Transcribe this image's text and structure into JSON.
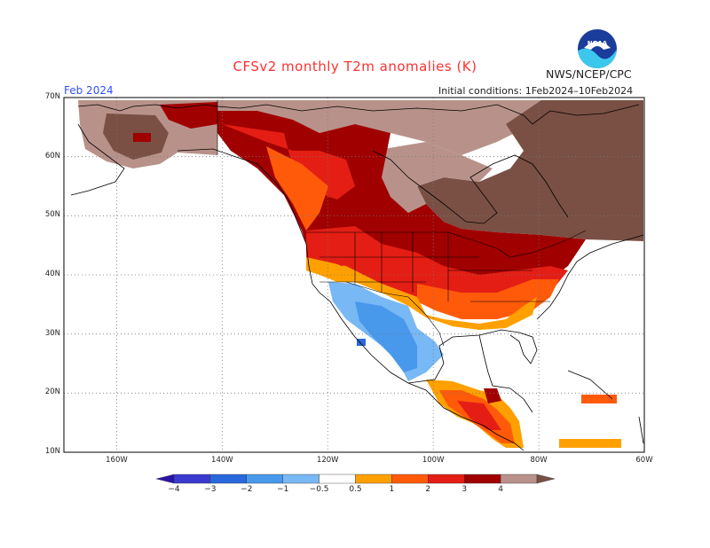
{
  "header": {
    "title": "CFSv2 monthly T2m anomalies (K)",
    "agency": "NWS/NCEP/CPC",
    "logo_text": "NOAA",
    "month": "Feb 2024",
    "initial_conditions": "Initial conditions: 1Feb2024–10Feb2024"
  },
  "map": {
    "lat_labels": [
      "70N",
      "60N",
      "50N",
      "40N",
      "30N",
      "20N",
      "10N"
    ],
    "lon_labels": [
      "160W",
      "140W",
      "120W",
      "100W",
      "80W",
      "60W"
    ],
    "lat_values": [
      70,
      60,
      50,
      40,
      30,
      20,
      10
    ],
    "lon_values": [
      -160,
      -140,
      -120,
      -100,
      -80,
      -60
    ],
    "lat_range": [
      10,
      70
    ],
    "lon_range": [
      -170,
      -60
    ],
    "grid": "dotted",
    "land_color": "#ffffff",
    "border_color": "#000000"
  },
  "colorbar": {
    "labels": [
      "−4",
      "−3",
      "−2",
      "−1",
      "−0.5",
      "0.5",
      "1",
      "2",
      "3",
      "4"
    ],
    "bins": [
      {
        "color": "#2a13a8"
      },
      {
        "color": "#3a3ad0"
      },
      {
        "color": "#2868dc"
      },
      {
        "color": "#4898ec"
      },
      {
        "color": "#78b8f4"
      },
      {
        "color": "#ffffff"
      },
      {
        "color": "#ffa000"
      },
      {
        "color": "#ff5a0a"
      },
      {
        "color": "#e41e14"
      },
      {
        "color": "#a00000"
      },
      {
        "color": "#b8928a"
      },
      {
        "color": "#7a5044"
      }
    ]
  }
}
